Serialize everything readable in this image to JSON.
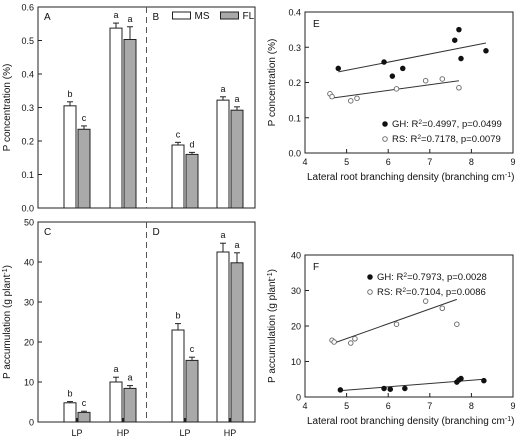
{
  "chart_data": [
    {
      "type": "bar",
      "panels": [
        "A",
        "B"
      ],
      "legend": [
        "MS",
        "FL"
      ],
      "ylabel": "P concentration (%)",
      "ylim": [
        0.0,
        0.6
      ],
      "yticks": [
        "0.0",
        "0.1",
        "0.2",
        "0.3",
        "0.4",
        "0.5",
        "0.6"
      ],
      "categories": [
        "LP",
        "HP",
        "LP",
        "HP"
      ],
      "series": [
        {
          "name": "MS",
          "values": [
            0.305,
            0.537,
            0.188,
            0.322
          ],
          "errors": [
            0.012,
            0.015,
            0.008,
            0.01
          ],
          "letters": [
            "b",
            "a",
            "c",
            "a"
          ]
        },
        {
          "name": "FL",
          "values": [
            0.235,
            0.503,
            0.16,
            0.292
          ],
          "errors": [
            0.01,
            0.038,
            0.006,
            0.01
          ],
          "letters": [
            "c",
            "a",
            "d",
            "a"
          ]
        }
      ]
    },
    {
      "type": "bar",
      "panels": [
        "C",
        "D"
      ],
      "ylabel": "P accumulation (g plant⁻¹)",
      "ylim": [
        0,
        50
      ],
      "yticks": [
        "0",
        "10",
        "20",
        "30",
        "40",
        "50"
      ],
      "categories": [
        "LP",
        "HP",
        "LP",
        "HP"
      ],
      "xtick_labels": [
        "LP",
        "HP",
        "LP",
        "HP"
      ],
      "series": [
        {
          "name": "MS",
          "values": [
            4.8,
            10.0,
            23.0,
            42.5
          ],
          "errors": [
            0.3,
            1.2,
            1.6,
            2.2
          ],
          "letters": [
            "b",
            "a",
            "b",
            "a"
          ]
        },
        {
          "name": "FL",
          "values": [
            2.4,
            8.4,
            15.4,
            39.8
          ],
          "errors": [
            0.3,
            0.7,
            0.8,
            2.5
          ],
          "letters": [
            "c",
            "a",
            "c",
            "a"
          ]
        }
      ]
    },
    {
      "type": "scatter",
      "panel": "E",
      "xlabel": "Lateral root branching density",
      "xunit": "(branching cm⁻¹)",
      "ylabel": "P concentration (%)",
      "xlim": [
        4,
        9
      ],
      "ylim": [
        0.0,
        0.4
      ],
      "xticks": [
        "4",
        "5",
        "6",
        "7",
        "8",
        "9"
      ],
      "yticks": [
        "0.0",
        "0.1",
        "0.2",
        "0.3",
        "0.4"
      ],
      "series": [
        {
          "name": "GH",
          "marker": "filled",
          "stats": "GH: R²=0.4997, p=0.0499",
          "x": [
            4.8,
            5.9,
            6.1,
            6.35,
            7.6,
            7.7,
            7.75,
            8.35
          ],
          "y": [
            0.24,
            0.258,
            0.218,
            0.24,
            0.32,
            0.35,
            0.268,
            0.29
          ],
          "fit": [
            [
              4.8,
              0.23
            ],
            [
              8.35,
              0.312
            ]
          ]
        },
        {
          "name": "RS",
          "marker": "open",
          "stats": "RS: R²=0.7178, p=0.0079",
          "x": [
            4.6,
            4.65,
            5.1,
            5.25,
            6.2,
            6.9,
            7.3,
            7.7
          ],
          "y": [
            0.168,
            0.16,
            0.148,
            0.155,
            0.182,
            0.205,
            0.21,
            0.185
          ],
          "fit": [
            [
              4.6,
              0.155
            ],
            [
              7.7,
              0.205
            ]
          ]
        }
      ]
    },
    {
      "type": "scatter",
      "panel": "F",
      "xlabel": "Lateral root branching density",
      "xunit": "(branching cm⁻¹)",
      "ylabel": "P accumulation (g plant⁻¹)",
      "xlim": [
        4,
        9
      ],
      "ylim": [
        0,
        40
      ],
      "xticks": [
        "4",
        "5",
        "6",
        "7",
        "8",
        "9"
      ],
      "yticks": [
        "0",
        "10",
        "20",
        "30",
        "40"
      ],
      "series": [
        {
          "name": "GH",
          "marker": "filled",
          "stats": "GH: R²=0.7973, p=0.0028",
          "x": [
            4.85,
            5.9,
            6.05,
            6.4,
            7.65,
            7.7,
            7.75,
            8.3
          ],
          "y": [
            2.0,
            2.4,
            2.2,
            2.4,
            4.2,
            4.8,
            5.2,
            4.6
          ],
          "fit": [
            [
              4.85,
              1.8
            ],
            [
              8.3,
              5.0
            ]
          ]
        },
        {
          "name": "RS",
          "marker": "open",
          "stats": "RS: R²=0.7104, p=0.0086",
          "x": [
            4.65,
            4.7,
            5.1,
            5.2,
            6.2,
            6.9,
            7.3,
            7.65
          ],
          "y": [
            16.0,
            15.5,
            15.2,
            16.4,
            20.5,
            27.0,
            25.0,
            20.5
          ],
          "fit": [
            [
              4.65,
              15.0
            ],
            [
              7.65,
              27.5
            ]
          ]
        }
      ]
    }
  ]
}
